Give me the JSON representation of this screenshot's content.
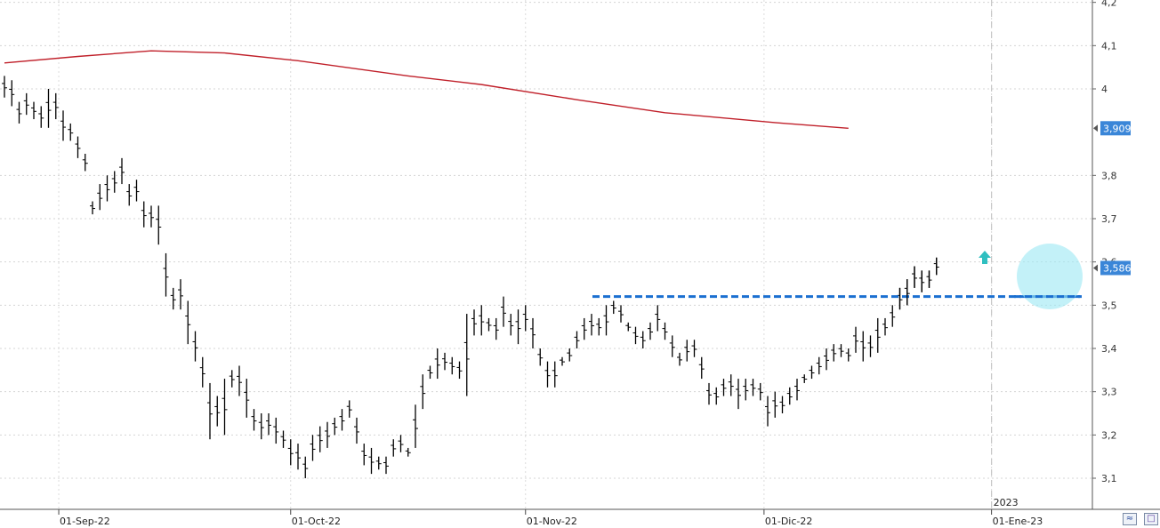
{
  "chart_data": {
    "type": "ohlc",
    "y_ticks": [
      "3,1",
      "3,2",
      "3,3",
      "3,4",
      "3,5",
      "3,6",
      "3,7",
      "3,8",
      "4",
      "4,1",
      "4,2"
    ],
    "x_labels": [
      "01-Sep-22",
      "01-Oct-22",
      "01-Nov-22",
      "01-Dic-22",
      "01-Ene-23"
    ],
    "year_label": "2023",
    "price_label": "3,586",
    "ma_label": "3,909",
    "ylim": [
      3.07,
      4.21
    ],
    "grid": true,
    "colors": {
      "bars": "#000000",
      "moving_average": "#c0202a",
      "resistance": "#1a6fd0",
      "label_bg": "#3a86d8",
      "highlight": "#9be8f4",
      "arrow": "#2fbfc0"
    },
    "resistance_level": 3.52,
    "moving_average": [
      [
        0,
        4.06
      ],
      [
        10,
        4.075
      ],
      [
        20,
        4.088
      ],
      [
        30,
        4.083
      ],
      [
        40,
        4.065
      ],
      [
        55,
        4.03
      ],
      [
        65,
        4.01
      ],
      [
        78,
        3.975
      ],
      [
        90,
        3.945
      ],
      [
        105,
        3.922
      ],
      [
        115,
        3.909
      ]
    ],
    "bars": [
      [
        0,
        4.03,
        3.98
      ],
      [
        1,
        4.02,
        3.96
      ],
      [
        2,
        3.97,
        3.92
      ],
      [
        3,
        3.99,
        3.94
      ],
      [
        4,
        3.97,
        3.93
      ],
      [
        5,
        3.96,
        3.91
      ],
      [
        6,
        4.0,
        3.91
      ],
      [
        7,
        3.99,
        3.93
      ],
      [
        8,
        3.95,
        3.88
      ],
      [
        9,
        3.92,
        3.88
      ],
      [
        10,
        3.89,
        3.84
      ],
      [
        11,
        3.85,
        3.81
      ],
      [
        12,
        3.74,
        3.71
      ],
      [
        13,
        3.78,
        3.72
      ],
      [
        14,
        3.8,
        3.74
      ],
      [
        15,
        3.81,
        3.76
      ],
      [
        16,
        3.84,
        3.78
      ],
      [
        17,
        3.78,
        3.73
      ],
      [
        18,
        3.79,
        3.74
      ],
      [
        19,
        3.74,
        3.68
      ],
      [
        20,
        3.73,
        3.68
      ],
      [
        21,
        3.73,
        3.64
      ],
      [
        22,
        3.62,
        3.52
      ],
      [
        23,
        3.54,
        3.49
      ],
      [
        24,
        3.56,
        3.49
      ],
      [
        25,
        3.51,
        3.41
      ],
      [
        26,
        3.44,
        3.37
      ],
      [
        27,
        3.38,
        3.31
      ],
      [
        28,
        3.32,
        3.19
      ],
      [
        29,
        3.29,
        3.22
      ],
      [
        30,
        3.33,
        3.2
      ],
      [
        31,
        3.35,
        3.31
      ],
      [
        32,
        3.36,
        3.29
      ],
      [
        33,
        3.33,
        3.24
      ],
      [
        34,
        3.26,
        3.21
      ],
      [
        35,
        3.25,
        3.19
      ],
      [
        36,
        3.25,
        3.2
      ],
      [
        37,
        3.24,
        3.18
      ],
      [
        38,
        3.21,
        3.17
      ],
      [
        39,
        3.19,
        3.13
      ],
      [
        40,
        3.18,
        3.12
      ],
      [
        41,
        3.15,
        3.1
      ],
      [
        42,
        3.2,
        3.14
      ],
      [
        43,
        3.22,
        3.16
      ],
      [
        44,
        3.23,
        3.17
      ],
      [
        45,
        3.24,
        3.2
      ],
      [
        46,
        3.26,
        3.21
      ],
      [
        47,
        3.28,
        3.24
      ],
      [
        48,
        3.24,
        3.18
      ],
      [
        49,
        3.18,
        3.13
      ],
      [
        50,
        3.17,
        3.11
      ],
      [
        51,
        3.15,
        3.12
      ],
      [
        52,
        3.15,
        3.11
      ],
      [
        53,
        3.19,
        3.15
      ],
      [
        54,
        3.2,
        3.16
      ],
      [
        55,
        3.17,
        3.15
      ],
      [
        56,
        3.27,
        3.17
      ],
      [
        57,
        3.34,
        3.26
      ],
      [
        58,
        3.36,
        3.33
      ],
      [
        59,
        3.4,
        3.33
      ],
      [
        60,
        3.39,
        3.35
      ],
      [
        61,
        3.38,
        3.34
      ],
      [
        62,
        3.37,
        3.33
      ],
      [
        63,
        3.48,
        3.29
      ],
      [
        64,
        3.49,
        3.43
      ],
      [
        65,
        3.5,
        3.43
      ],
      [
        66,
        3.47,
        3.44
      ],
      [
        67,
        3.47,
        3.42
      ],
      [
        68,
        3.52,
        3.45
      ],
      [
        69,
        3.48,
        3.43
      ],
      [
        70,
        3.49,
        3.41
      ],
      [
        71,
        3.5,
        3.44
      ],
      [
        72,
        3.47,
        3.4
      ],
      [
        73,
        3.4,
        3.36
      ],
      [
        74,
        3.37,
        3.31
      ],
      [
        75,
        3.37,
        3.31
      ],
      [
        76,
        3.38,
        3.36
      ],
      [
        77,
        3.4,
        3.37
      ],
      [
        78,
        3.44,
        3.4
      ],
      [
        79,
        3.47,
        3.42
      ],
      [
        80,
        3.48,
        3.43
      ],
      [
        81,
        3.47,
        3.43
      ],
      [
        82,
        3.5,
        3.43
      ],
      [
        83,
        3.51,
        3.48
      ],
      [
        84,
        3.5,
        3.46
      ],
      [
        85,
        3.46,
        3.44
      ],
      [
        86,
        3.45,
        3.41
      ],
      [
        87,
        3.44,
        3.4
      ],
      [
        88,
        3.46,
        3.42
      ],
      [
        89,
        3.5,
        3.44
      ],
      [
        90,
        3.46,
        3.42
      ],
      [
        91,
        3.43,
        3.38
      ],
      [
        92,
        3.39,
        3.36
      ],
      [
        93,
        3.42,
        3.37
      ],
      [
        94,
        3.42,
        3.38
      ],
      [
        95,
        3.38,
        3.33
      ],
      [
        96,
        3.32,
        3.27
      ],
      [
        97,
        3.31,
        3.27
      ],
      [
        98,
        3.33,
        3.29
      ],
      [
        99,
        3.34,
        3.29
      ],
      [
        100,
        3.33,
        3.26
      ],
      [
        101,
        3.33,
        3.28
      ],
      [
        102,
        3.33,
        3.29
      ],
      [
        103,
        3.32,
        3.28
      ],
      [
        104,
        3.29,
        3.22
      ],
      [
        105,
        3.3,
        3.24
      ],
      [
        106,
        3.29,
        3.25
      ],
      [
        107,
        3.31,
        3.27
      ],
      [
        108,
        3.33,
        3.28
      ],
      [
        109,
        3.34,
        3.32
      ],
      [
        110,
        3.36,
        3.33
      ],
      [
        111,
        3.38,
        3.34
      ],
      [
        112,
        3.4,
        3.35
      ],
      [
        113,
        3.41,
        3.37
      ],
      [
        114,
        3.41,
        3.38
      ],
      [
        115,
        3.4,
        3.37
      ],
      [
        116,
        3.45,
        3.39
      ],
      [
        117,
        3.44,
        3.37
      ],
      [
        118,
        3.43,
        3.38
      ],
      [
        119,
        3.47,
        3.39
      ],
      [
        120,
        3.47,
        3.43
      ],
      [
        121,
        3.5,
        3.45
      ],
      [
        122,
        3.54,
        3.49
      ],
      [
        123,
        3.56,
        3.5
      ],
      [
        124,
        3.59,
        3.54
      ],
      [
        125,
        3.58,
        3.53
      ],
      [
        126,
        3.58,
        3.54
      ],
      [
        127,
        3.61,
        3.57
      ]
    ]
  },
  "toolbar": {
    "scale_icon": "autoscale-icon",
    "save_icon": "save-icon"
  }
}
